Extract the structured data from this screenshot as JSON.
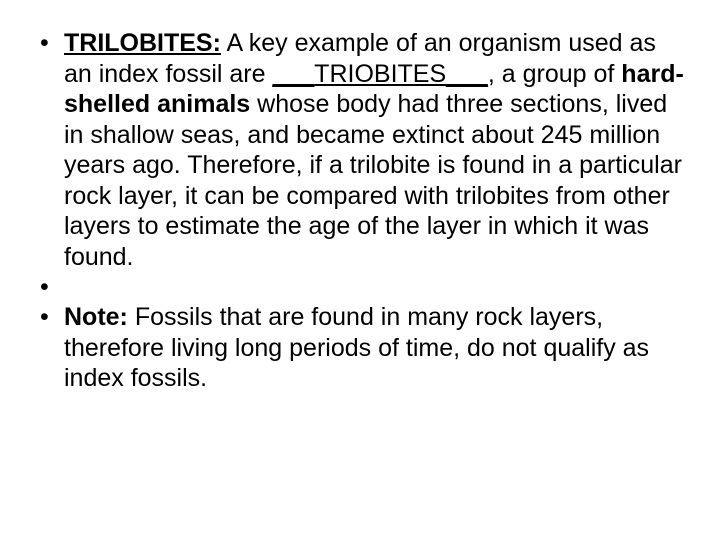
{
  "slide": {
    "bullets": [
      {
        "heading": "TRILOBITES:",
        "p1": "  A key example of an organism used as an index fossil are ",
        "blank_pre": "___",
        "blank_word": "TRIOBITES",
        "blank_post": "___",
        "p2": ", a group of ",
        "hard": "hard-shelled animals",
        "p3": " whose body had three sections, lived in shallow seas, and became extinct about 245 million years ago. Therefore, if a trilobite is found in a particular rock layer, it can be compared with trilobites from other layers to estimate the age of the layer in which it was found."
      },
      {
        "text": ""
      },
      {
        "heading": "Note:",
        "body": "  Fossils that are found in many rock layers, therefore living long periods of time, do not qualify as index fossils."
      }
    ],
    "colors": {
      "background": "#ffffff",
      "text": "#000000"
    },
    "font_size_pt": 25,
    "font_family": "Arial"
  }
}
